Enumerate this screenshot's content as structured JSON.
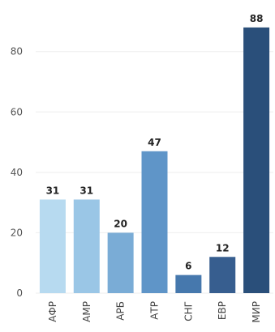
{
  "chart_data": {
    "type": "bar",
    "title": "",
    "xlabel": "",
    "ylabel": "",
    "categories": [
      "АФР",
      "АМР",
      "АРБ",
      "АТР",
      "СНГ",
      "ЕВР",
      "МИР"
    ],
    "values": [
      31,
      31,
      20,
      47,
      6,
      12,
      88
    ],
    "value_labels": [
      "31",
      "31",
      "20",
      "47",
      "6",
      "12",
      "88"
    ],
    "colors": [
      "#b7daf0",
      "#9ac6e6",
      "#7aacd6",
      "#5f95c8",
      "#4678ad",
      "#375e8f",
      "#2a4f7a"
    ],
    "y_ticks": [
      0,
      20,
      40,
      60,
      80
    ],
    "y_tick_labels": [
      "0",
      "20",
      "40",
      "60",
      "80"
    ],
    "ylim": [
      0,
      92
    ],
    "grid": true,
    "legend": "none"
  }
}
